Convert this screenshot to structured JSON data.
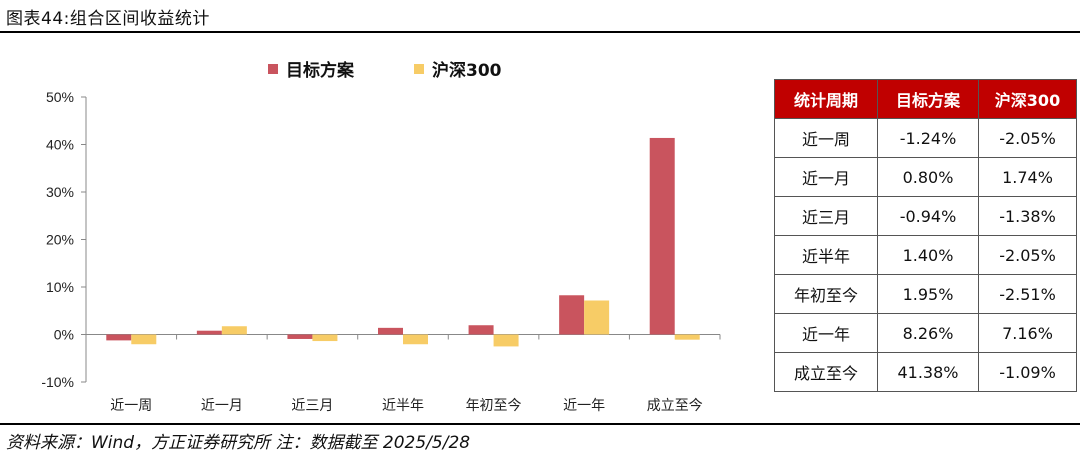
{
  "figure": {
    "title": "图表44:组合区间收益统计",
    "source": "资料来源：Wind，方正证券研究所  注：数据截至 2025/5/28"
  },
  "colors": {
    "strategy": "#c9545e",
    "hs300": "#f7cc66",
    "header_bg": "#c00000"
  },
  "chart_data": {
    "type": "bar",
    "categories": [
      "近一周",
      "近一月",
      "近三月",
      "近半年",
      "年初至今",
      "近一年",
      "成立至今"
    ],
    "series": [
      {
        "name": "目标方案",
        "values": [
          -1.24,
          0.8,
          -0.94,
          1.4,
          1.95,
          8.26,
          41.38
        ]
      },
      {
        "name": "沪深300",
        "values": [
          -2.05,
          1.74,
          -1.38,
          -2.05,
          -2.51,
          7.16,
          -1.09
        ]
      }
    ],
    "ylim": [
      -10,
      50
    ],
    "yticks": [
      "-10%",
      "0%",
      "10%",
      "20%",
      "30%",
      "40%",
      "50%"
    ],
    "ytick_values": [
      -10,
      0,
      10,
      20,
      30,
      40,
      50
    ],
    "xlabel": "",
    "ylabel": "",
    "legend": "top-center",
    "grid": false
  },
  "table": {
    "headers": [
      "统计周期",
      "目标方案",
      "沪深300"
    ],
    "rows": [
      [
        "近一周",
        "-1.24%",
        "-2.05%"
      ],
      [
        "近一月",
        "0.80%",
        "1.74%"
      ],
      [
        "近三月",
        "-0.94%",
        "-1.38%"
      ],
      [
        "近半年",
        "1.40%",
        "-2.05%"
      ],
      [
        "年初至今",
        "1.95%",
        "-2.51%"
      ],
      [
        "近一年",
        "8.26%",
        "7.16%"
      ],
      [
        "成立至今",
        "41.38%",
        "-1.09%"
      ]
    ]
  }
}
